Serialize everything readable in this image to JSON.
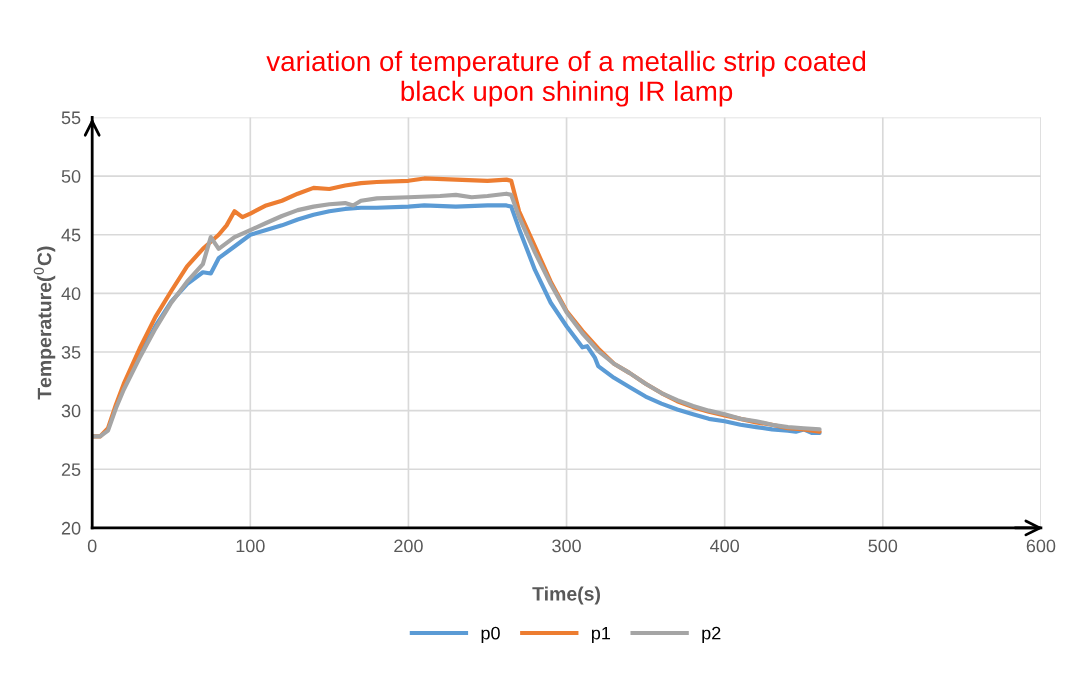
{
  "chart_data": {
    "type": "line",
    "title": "variation of temperature of a metallic strip coated\nblack upon shining IR lamp",
    "xlabel": "Time(s)",
    "ylabel": "Temperature($^{0}$C)",
    "xlim": [
      0,
      600
    ],
    "xticks": [
      0,
      100,
      200,
      300,
      400,
      500,
      600
    ],
    "ylim": [
      20,
      55
    ],
    "yticks": [
      20,
      25,
      30,
      35,
      40,
      45,
      50,
      55
    ],
    "grid": true,
    "legend": "bottom",
    "marker": "none",
    "line_style": "solid",
    "series": [
      {
        "name": "p0",
        "color": "#5b9bd5",
        "x": [
          20,
          30,
          40,
          50,
          60,
          70,
          75,
          80,
          90,
          100,
          110,
          120,
          130,
          140,
          150,
          160,
          170,
          180,
          200,
          210,
          230,
          250,
          262,
          265,
          270,
          280,
          290,
          300,
          310,
          313,
          318,
          320,
          330,
          340,
          350,
          360,
          370,
          380,
          390,
          400,
          410,
          420,
          430,
          440,
          445,
          450,
          455,
          460
        ],
        "values": [
          32,
          34.7,
          37.2,
          39.3,
          40.8,
          41.8,
          41.7,
          43,
          44,
          45,
          45.4,
          45.8,
          46.3,
          46.7,
          47,
          47.2,
          47.3,
          47.3,
          47.4,
          47.5,
          47.4,
          47.5,
          47.5,
          47.4,
          45.5,
          42,
          39.2,
          37.2,
          35.4,
          35.5,
          34.5,
          33.8,
          32.8,
          32,
          31.2,
          30.6,
          30.1,
          29.7,
          29.3,
          29.1,
          28.8,
          28.6,
          28.4,
          28.3,
          28.2,
          28.4,
          28.1,
          28.1
        ]
      },
      {
        "name": "p1",
        "color": "#ed7d31",
        "x": [
          0,
          5,
          10,
          15,
          20,
          30,
          40,
          50,
          60,
          70,
          80,
          85,
          90,
          95,
          100,
          110,
          120,
          130,
          140,
          150,
          160,
          170,
          180,
          200,
          210,
          230,
          250,
          262,
          265,
          270,
          280,
          290,
          300,
          310,
          320,
          330,
          340,
          350,
          360,
          370,
          380,
          390,
          400,
          410,
          420,
          430,
          440,
          450,
          460
        ],
        "values": [
          27.8,
          27.8,
          28.5,
          30.5,
          32.3,
          35.3,
          38,
          40.2,
          42.3,
          43.8,
          45,
          45.8,
          47,
          46.5,
          46.8,
          47.5,
          47.9,
          48.5,
          49,
          48.9,
          49.2,
          49.4,
          49.5,
          49.6,
          49.8,
          49.7,
          49.6,
          49.7,
          49.6,
          47,
          44,
          41,
          38.5,
          36.8,
          35.3,
          34,
          33.2,
          32.3,
          31.5,
          30.8,
          30.3,
          29.9,
          29.6,
          29.3,
          29,
          28.8,
          28.5,
          28.4,
          28.2
        ]
      },
      {
        "name": "p2",
        "color": "#a5a5a5",
        "x": [
          0,
          5,
          10,
          15,
          20,
          30,
          40,
          50,
          60,
          70,
          75,
          80,
          90,
          100,
          110,
          120,
          130,
          140,
          150,
          160,
          165,
          170,
          180,
          200,
          220,
          230,
          240,
          250,
          262,
          265,
          270,
          280,
          290,
          300,
          310,
          320,
          330,
          340,
          350,
          360,
          370,
          380,
          390,
          400,
          410,
          420,
          430,
          440,
          450,
          460
        ],
        "values": [
          27.8,
          27.8,
          28.3,
          30.2,
          31.8,
          34.5,
          37,
          39.2,
          41,
          42.5,
          44.8,
          43.8,
          44.8,
          45.4,
          46,
          46.6,
          47.1,
          47.4,
          47.6,
          47.7,
          47.5,
          47.9,
          48.1,
          48.2,
          48.3,
          48.4,
          48.2,
          48.3,
          48.5,
          48.4,
          46.5,
          43.5,
          40.8,
          38.4,
          36.6,
          35.1,
          34,
          33.2,
          32.3,
          31.5,
          30.9,
          30.4,
          30,
          29.7,
          29.3,
          29.1,
          28.8,
          28.6,
          28.5,
          28.4
        ]
      }
    ]
  }
}
